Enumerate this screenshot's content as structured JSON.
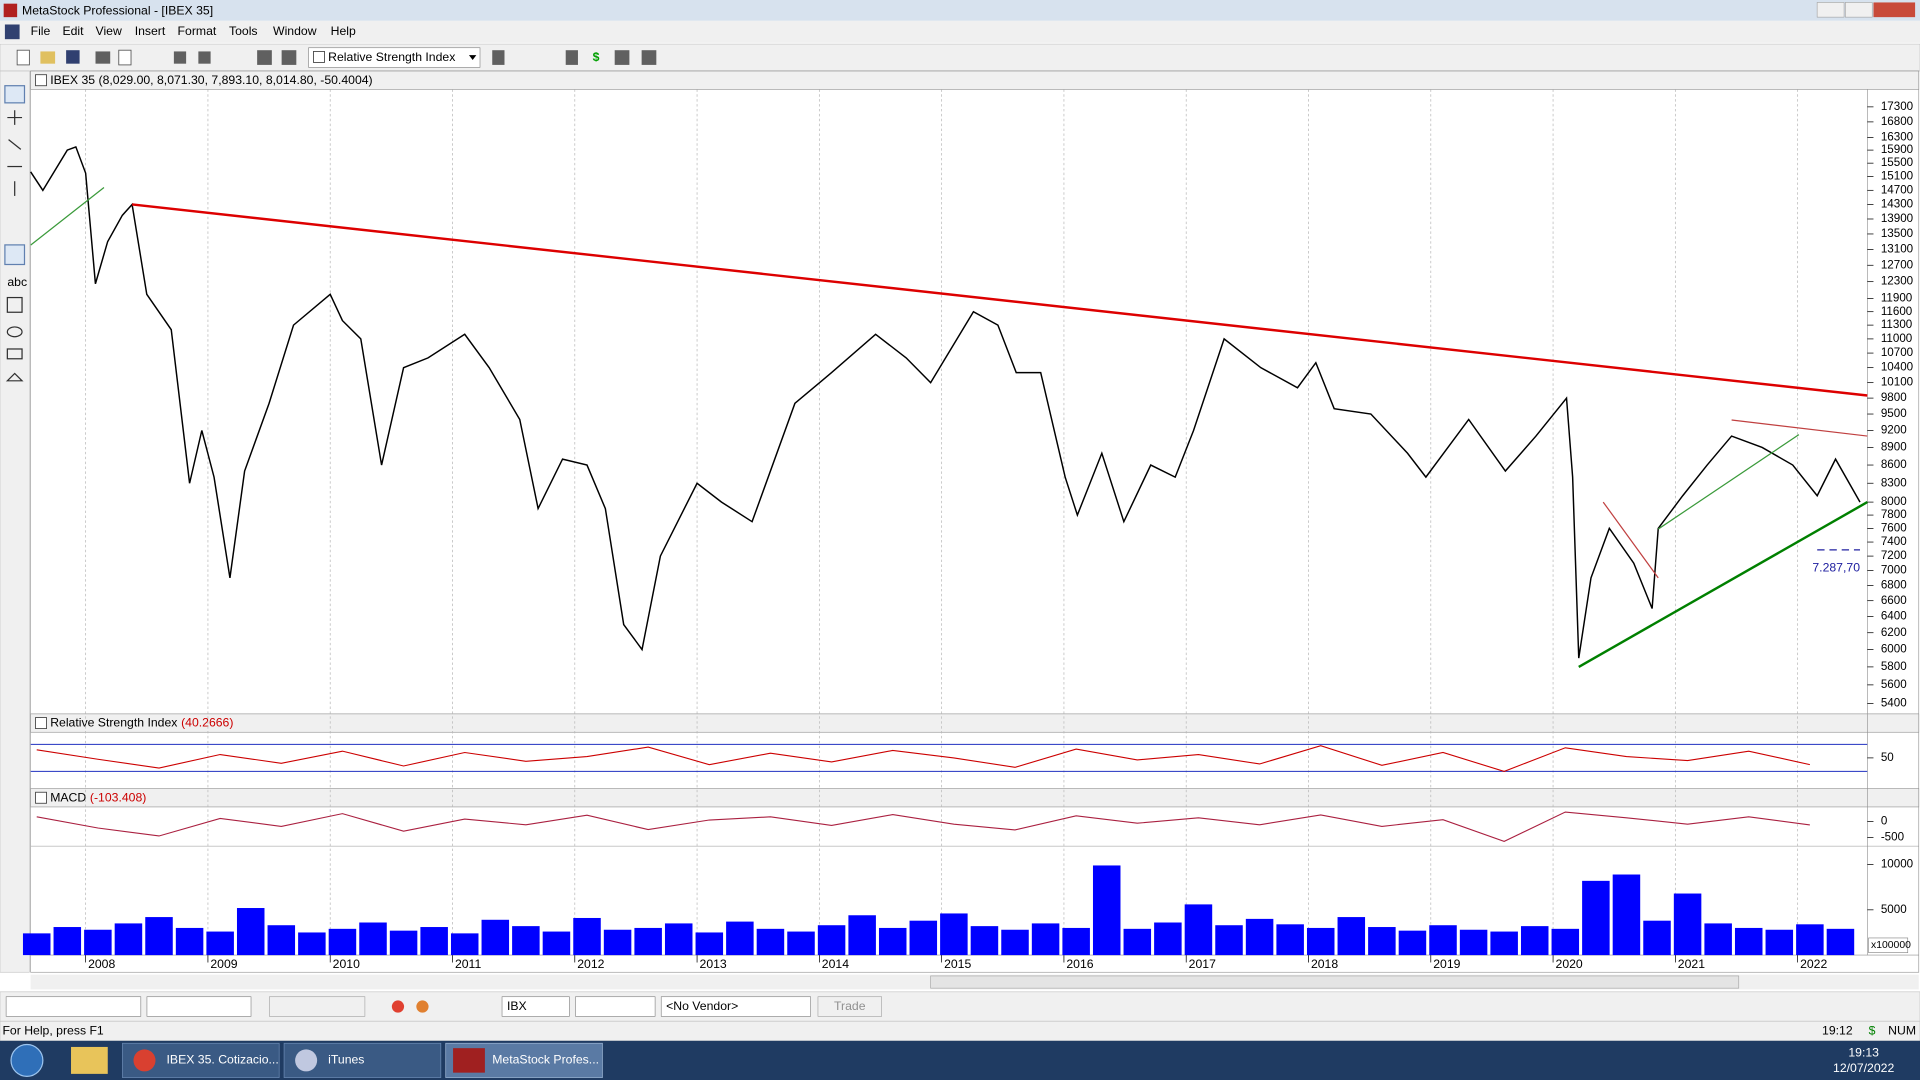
{
  "window": {
    "title": "MetaStock Professional - [IBEX 35]"
  },
  "menu": [
    "File",
    "Edit",
    "View",
    "Insert",
    "Format",
    "Tools",
    "Window",
    "Help"
  ],
  "toolbar": {
    "indicator": "Relative Strength Index"
  },
  "left_tools": {
    "text_tool": "abc"
  },
  "chart_data": [
    {
      "type": "line",
      "title": "IBEX 35 (8,029.00, 8,071.30, 7,893.10, 8,014.80, -50.4004)",
      "color": "#000000",
      "log_scale": true,
      "grid": true,
      "x": [
        2007.55,
        2007.65,
        2007.85,
        2007.92,
        2008.0,
        2008.08,
        2008.18,
        2008.3,
        2008.38,
        2008.5,
        2008.7,
        2008.85,
        2008.95,
        2009.05,
        2009.18,
        2009.3,
        2009.5,
        2009.7,
        2010.0,
        2010.1,
        2010.25,
        2010.42,
        2010.6,
        2010.8,
        2011.1,
        2011.3,
        2011.55,
        2011.7,
        2011.9,
        2012.1,
        2012.25,
        2012.4,
        2012.55,
        2012.7,
        2013.0,
        2013.2,
        2013.45,
        2013.8,
        2014.1,
        2014.46,
        2014.71,
        2014.91,
        2015.26,
        2015.46,
        2015.61,
        2015.81,
        2016.01,
        2016.11,
        2016.31,
        2016.49,
        2016.71,
        2016.91,
        2017.06,
        2017.31,
        2017.61,
        2017.91,
        2018.06,
        2018.21,
        2018.51,
        2018.81,
        2018.96,
        2019.31,
        2019.61,
        2019.86,
        2020.11,
        2020.16,
        2020.21,
        2020.31,
        2020.46,
        2020.66,
        2020.81,
        2020.86,
        2021.06,
        2021.26,
        2021.46,
        2021.71,
        2021.96,
        2022.16,
        2022.31,
        2022.51
      ],
      "values": [
        15240,
        14700,
        15900,
        16000,
        15200,
        12250,
        13300,
        14000,
        14300,
        12000,
        11200,
        8300,
        9200,
        8400,
        6900,
        8500,
        9700,
        11300,
        12000,
        11400,
        11000,
        8600,
        10400,
        10600,
        11100,
        10400,
        9400,
        7900,
        8700,
        8600,
        7900,
        6300,
        6000,
        7200,
        8300,
        8000,
        7700,
        9700,
        10300,
        11100,
        10600,
        10100,
        11600,
        11300,
        10300,
        10300,
        8400,
        7800,
        8800,
        7700,
        8600,
        8400,
        9200,
        11000,
        10400,
        10000,
        10500,
        9600,
        9500,
        8800,
        8400,
        9400,
        8500,
        9100,
        9800,
        8400,
        5900,
        6900,
        7600,
        7100,
        6500,
        7600,
        8100,
        8600,
        9100,
        8900,
        8600,
        8100,
        8700,
        8000
      ],
      "xlim": [
        2007.55,
        2022.57
      ],
      "xticks": [
        2008,
        2009,
        2010,
        2011,
        2012,
        2013,
        2014,
        2015,
        2016,
        2017,
        2018,
        2019,
        2020,
        2021,
        2022
      ],
      "ylim": [
        5330,
        17900
      ],
      "yticks": [
        17300,
        16800,
        16300,
        15900,
        15500,
        15100,
        14700,
        14300,
        13900,
        13500,
        13100,
        12700,
        12300,
        11900,
        11600,
        11300,
        11000,
        10700,
        10400,
        10100,
        9800,
        9500,
        9200,
        8900,
        8600,
        8300,
        8000,
        7800,
        7600,
        7400,
        7200,
        7000,
        6800,
        6600,
        6400,
        6200,
        6000,
        5800,
        5600,
        5400
      ],
      "trend_lines": [
        {
          "x": [
            2008.38,
            2022.57
          ],
          "y": [
            14300,
            9850
          ],
          "color": "#dd0000"
        },
        {
          "x": [
            2020.21,
            2022.57
          ],
          "y": [
            5800,
            8000
          ],
          "color": "#008000"
        },
        {
          "x": [
            2007.55,
            2008.15
          ],
          "y": [
            13210,
            14780
          ],
          "color": "#3a9a3a"
        },
        {
          "x": [
            2020.86,
            2022.01
          ],
          "y": [
            7590,
            9126
          ],
          "color": "#3a9a3a"
        },
        {
          "x": [
            2021.46,
            2022.57
          ],
          "y": [
            9390,
            9100
          ],
          "color": "#c04040"
        },
        {
          "x": [
            2020.41,
            2020.86
          ],
          "y": [
            8000,
            6900
          ],
          "color": "#c04040"
        }
      ],
      "support": {
        "x": [
          2022.16,
          2022.51
        ],
        "value": 7287.7,
        "label": "7.287,70",
        "color": "#2020a0"
      }
    },
    {
      "type": "line",
      "title": "Relative Strength Index",
      "last_label": "(40.2666)",
      "color": "#cc0000",
      "x": [
        2007.6,
        2008.1,
        2008.6,
        2009.1,
        2009.6,
        2010.1,
        2010.6,
        2011.1,
        2011.6,
        2012.1,
        2012.6,
        2013.1,
        2013.6,
        2014.1,
        2014.6,
        2015.1,
        2015.6,
        2016.1,
        2016.6,
        2017.1,
        2017.6,
        2018.1,
        2018.6,
        2019.1,
        2019.6,
        2020.1,
        2020.6,
        2021.1,
        2021.6,
        2022.1
      ],
      "values": [
        62,
        48,
        35,
        55,
        42,
        60,
        38,
        58,
        45,
        52,
        66,
        40,
        57,
        44,
        61,
        50,
        36,
        63,
        47,
        55,
        41,
        68,
        39,
        58,
        30,
        65,
        52,
        46,
        60,
        40
      ],
      "ylim": [
        10,
        88
      ],
      "yticks": [
        50
      ],
      "levels": [
        30,
        70
      ]
    },
    {
      "type": "line",
      "title": "MACD",
      "last_label": "(-103.408)",
      "color": "#aa2040",
      "x": [
        2007.6,
        2008.1,
        2008.6,
        2009.1,
        2009.6,
        2010.1,
        2010.6,
        2011.1,
        2011.6,
        2012.1,
        2012.6,
        2013.1,
        2013.6,
        2014.1,
        2014.6,
        2015.1,
        2015.6,
        2016.1,
        2016.6,
        2017.1,
        2017.6,
        2018.1,
        2018.6,
        2019.1,
        2019.6,
        2020.1,
        2020.6,
        2021.1,
        2021.6,
        2022.1
      ],
      "values": [
        150,
        -200,
        -450,
        100,
        -150,
        250,
        -300,
        80,
        -100,
        200,
        -250,
        50,
        150,
        -120,
        220,
        -80,
        -260,
        180,
        -50,
        120,
        -100,
        210,
        -150,
        60,
        -620,
        300,
        120,
        -80,
        150,
        -103
      ],
      "ylim": [
        -730,
        460
      ],
      "yticks": [
        0,
        -500
      ]
    },
    {
      "type": "bar",
      "color": "#0000ff",
      "multiplier_label": "x100000",
      "x": [
        2007.6,
        2007.85,
        2008.1,
        2008.35,
        2008.6,
        2008.85,
        2009.1,
        2009.35,
        2009.6,
        2009.85,
        2010.1,
        2010.35,
        2010.6,
        2010.85,
        2011.1,
        2011.35,
        2011.6,
        2011.85,
        2012.1,
        2012.35,
        2012.6,
        2012.85,
        2013.1,
        2013.35,
        2013.6,
        2013.85,
        2014.1,
        2014.35,
        2014.6,
        2014.85,
        2015.1,
        2015.35,
        2015.6,
        2015.85,
        2016.1,
        2016.35,
        2016.6,
        2016.85,
        2017.1,
        2017.35,
        2017.6,
        2017.85,
        2018.1,
        2018.35,
        2018.6,
        2018.85,
        2019.1,
        2019.35,
        2019.6,
        2019.85,
        2020.1,
        2020.35,
        2020.6,
        2020.85,
        2021.1,
        2021.35,
        2021.6,
        2021.85,
        2022.1,
        2022.35
      ],
      "values": [
        2400,
        3100,
        2800,
        3500,
        4200,
        3000,
        2600,
        5200,
        3300,
        2500,
        2900,
        3600,
        2700,
        3100,
        2400,
        3900,
        3200,
        2600,
        4100,
        2800,
        3000,
        3500,
        2500,
        3700,
        2900,
        2600,
        3300,
        4400,
        3000,
        3800,
        4600,
        3200,
        2800,
        3500,
        3000,
        9900,
        2900,
        3600,
        5600,
        3300,
        4000,
        3400,
        3000,
        4200,
        3100,
        2700,
        3300,
        2800,
        2600,
        3200,
        2900,
        8200,
        8900,
        3800,
        6800,
        3500,
        3000,
        2800,
        3400,
        2900
      ],
      "ylim": [
        0,
        11900
      ],
      "yticks": [
        10000,
        5000
      ]
    }
  ],
  "bottom_bar": {
    "symbol": "IBX",
    "vendor": "<No Vendor>",
    "button": "Trade"
  },
  "status": {
    "help": "For Help, press F1",
    "time": "19:12",
    "currency": "$",
    "num": "NUM"
  },
  "taskbar": {
    "items": [
      "IBEX 35. Cotizacio...",
      "iTunes",
      "MetaStock Profes..."
    ],
    "time": "19:13",
    "date": "12/07/2022"
  }
}
